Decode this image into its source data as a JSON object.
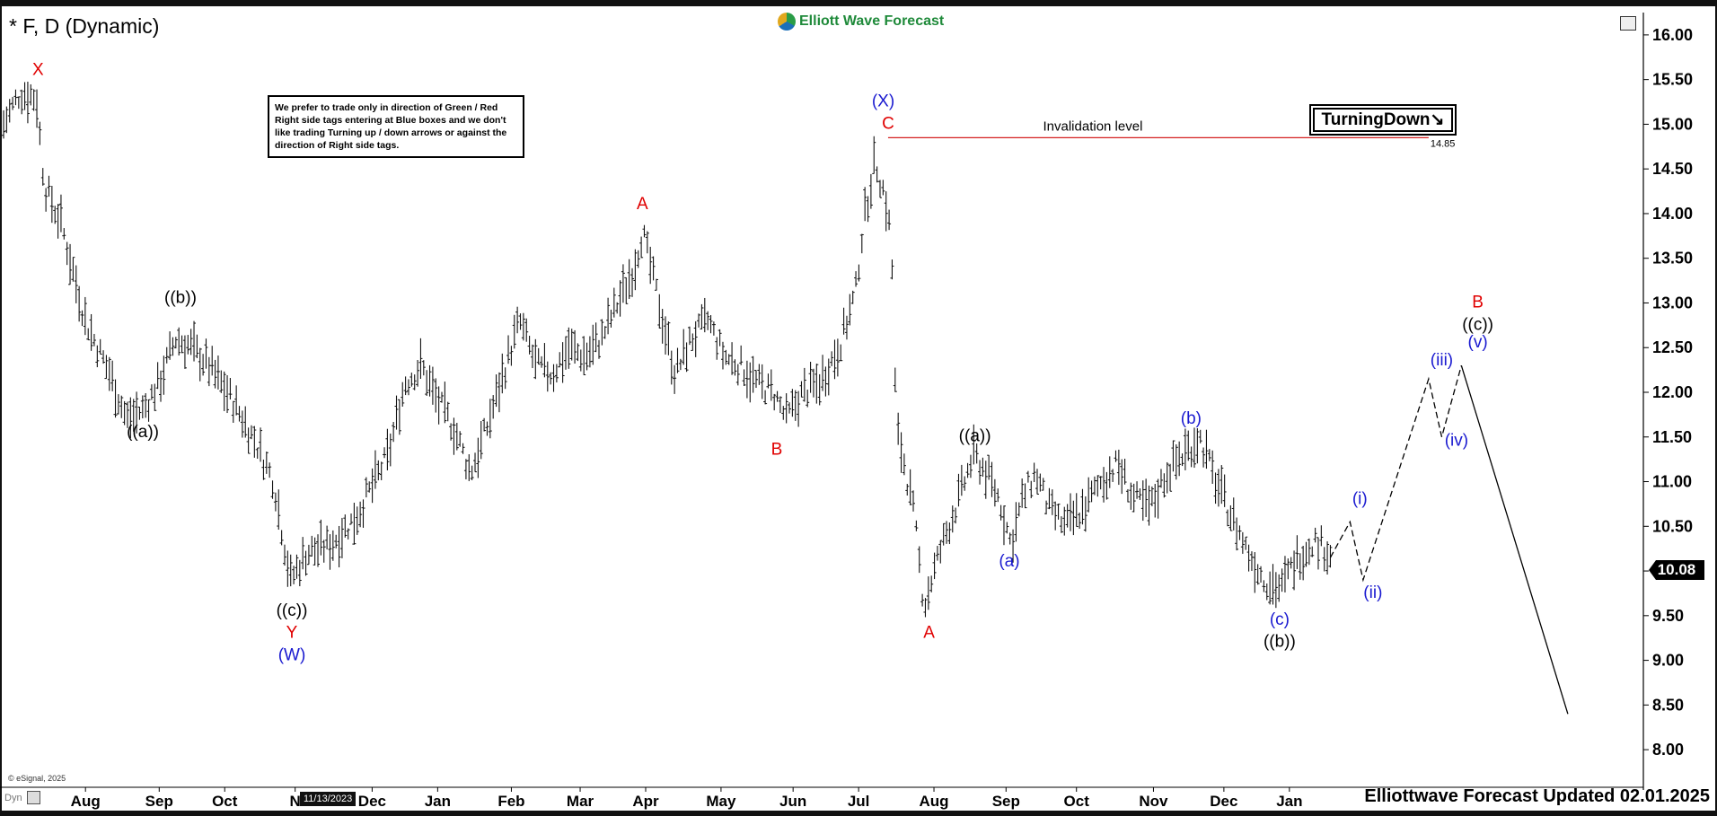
{
  "header": {
    "symbol": "* F, D (Dynamic)",
    "brand": "Elliott Wave Forecast"
  },
  "note": "We prefer to trade only in direction of Green / Red Right side tags entering at Blue boxes and we don't like trading Turning up / down arrows or against the direction of Right side tags.",
  "tag": {
    "label": "TurningDown",
    "arrow": "↘"
  },
  "invalidation": {
    "label": "Invalidation level",
    "value": "14.85"
  },
  "last_price": "10.08",
  "footer": "Elliottwave Forecast Updated 02.01.2025",
  "copyright": "© eSignal, 2025",
  "cursor_date": "11/13/2023",
  "dyn_label": "Dyn",
  "colors": {
    "red": "#e00000",
    "blue": "#1a1ad0",
    "black": "#000000",
    "invalidation_line": "#d42020"
  },
  "chart_data": {
    "type": "line",
    "subtype": "ohlc-bars with elliott wave labels",
    "ylim": [
      7.75,
      16.25
    ],
    "y_ticks": [
      "16.00",
      "15.50",
      "15.00",
      "14.50",
      "14.00",
      "13.50",
      "13.00",
      "12.50",
      "12.00",
      "11.50",
      "11.00",
      "10.50",
      "10.00",
      "9.50",
      "9.00",
      "8.50",
      "8.00"
    ],
    "x_ticks": [
      {
        "label": "Aug",
        "t": 0.05
      },
      {
        "label": "Sep",
        "t": 0.095
      },
      {
        "label": "Oct",
        "t": 0.135
      },
      {
        "label": "N",
        "t": 0.178
      },
      {
        "label": "Dec",
        "t": 0.225
      },
      {
        "label": "Jan",
        "t": 0.265
      },
      {
        "label": "Feb",
        "t": 0.31
      },
      {
        "label": "Mar",
        "t": 0.352
      },
      {
        "label": "Apr",
        "t": 0.392
      },
      {
        "label": "May",
        "t": 0.438
      },
      {
        "label": "Jun",
        "t": 0.482
      },
      {
        "label": "Jul",
        "t": 0.522
      },
      {
        "label": "Aug",
        "t": 0.568
      },
      {
        "label": "Sep",
        "t": 0.612
      },
      {
        "label": "Oct",
        "t": 0.655
      },
      {
        "label": "Nov",
        "t": 0.702
      },
      {
        "label": "Dec",
        "t": 0.745
      },
      {
        "label": "Jan",
        "t": 0.785
      }
    ],
    "price_path": [
      [
        0.0,
        15.0
      ],
      [
        0.01,
        15.35
      ],
      [
        0.02,
        15.3
      ],
      [
        0.025,
        14.3
      ],
      [
        0.035,
        13.9
      ],
      [
        0.05,
        12.8
      ],
      [
        0.065,
        12.2
      ],
      [
        0.075,
        11.7
      ],
      [
        0.085,
        11.8
      ],
      [
        0.095,
        12.1
      ],
      [
        0.105,
        12.6
      ],
      [
        0.115,
        12.5
      ],
      [
        0.125,
        12.3
      ],
      [
        0.14,
        11.9
      ],
      [
        0.155,
        11.4
      ],
      [
        0.165,
        11.0
      ],
      [
        0.175,
        9.9
      ],
      [
        0.185,
        10.2
      ],
      [
        0.2,
        10.3
      ],
      [
        0.215,
        10.6
      ],
      [
        0.235,
        11.3
      ],
      [
        0.245,
        12.1
      ],
      [
        0.255,
        12.3
      ],
      [
        0.265,
        11.9
      ],
      [
        0.275,
        11.6
      ],
      [
        0.285,
        11.1
      ],
      [
        0.295,
        11.6
      ],
      [
        0.305,
        12.2
      ],
      [
        0.315,
        12.8
      ],
      [
        0.325,
        12.3
      ],
      [
        0.335,
        12.2
      ],
      [
        0.345,
        12.5
      ],
      [
        0.355,
        12.4
      ],
      [
        0.365,
        12.6
      ],
      [
        0.375,
        13.0
      ],
      [
        0.385,
        13.4
      ],
      [
        0.39,
        13.8
      ],
      [
        0.4,
        13.0
      ],
      [
        0.41,
        12.2
      ],
      [
        0.42,
        12.6
      ],
      [
        0.43,
        12.8
      ],
      [
        0.44,
        12.4
      ],
      [
        0.45,
        12.3
      ],
      [
        0.46,
        12.1
      ],
      [
        0.47,
        12.0
      ],
      [
        0.478,
        11.7
      ],
      [
        0.488,
        12.0
      ],
      [
        0.498,
        12.1
      ],
      [
        0.51,
        12.5
      ],
      [
        0.52,
        13.1
      ],
      [
        0.525,
        13.9
      ],
      [
        0.532,
        14.6
      ],
      [
        0.538,
        14.2
      ],
      [
        0.542,
        13.7
      ],
      [
        0.545,
        11.6
      ],
      [
        0.55,
        11.2
      ],
      [
        0.556,
        10.6
      ],
      [
        0.562,
        9.6
      ],
      [
        0.568,
        10.0
      ],
      [
        0.575,
        10.4
      ],
      [
        0.585,
        10.9
      ],
      [
        0.592,
        11.3
      ],
      [
        0.6,
        11.1
      ],
      [
        0.608,
        10.8
      ],
      [
        0.615,
        10.3
      ],
      [
        0.622,
        10.8
      ],
      [
        0.63,
        11.1
      ],
      [
        0.638,
        10.7
      ],
      [
        0.648,
        10.5
      ],
      [
        0.66,
        10.7
      ],
      [
        0.67,
        11.0
      ],
      [
        0.68,
        11.2
      ],
      [
        0.69,
        10.8
      ],
      [
        0.7,
        10.7
      ],
      [
        0.71,
        11.1
      ],
      [
        0.72,
        11.3
      ],
      [
        0.73,
        11.5
      ],
      [
        0.74,
        11.0
      ],
      [
        0.75,
        10.6
      ],
      [
        0.76,
        10.2
      ],
      [
        0.77,
        9.9
      ],
      [
        0.78,
        9.8
      ],
      [
        0.788,
        10.1
      ],
      [
        0.8,
        10.35
      ],
      [
        0.81,
        10.2
      ]
    ],
    "projection": [
      [
        0.81,
        10.15
      ],
      [
        0.822,
        10.55
      ],
      [
        0.83,
        9.9
      ],
      [
        0.87,
        12.15
      ],
      [
        0.878,
        11.5
      ],
      [
        0.89,
        12.3
      ]
    ],
    "projection_down": [
      [
        0.89,
        12.3
      ],
      [
        0.955,
        8.4
      ]
    ],
    "labels": [
      {
        "text": "X",
        "t": 0.021,
        "y": 15.55,
        "color": "red"
      },
      {
        "text": "((b))",
        "t": 0.108,
        "y": 13.0,
        "color": "black"
      },
      {
        "text": "((a))",
        "t": 0.085,
        "y": 11.5,
        "color": "black"
      },
      {
        "text": "((c))",
        "t": 0.176,
        "y": 9.5,
        "color": "black"
      },
      {
        "text": "Y",
        "t": 0.176,
        "y": 9.25,
        "color": "red"
      },
      {
        "text": "(W)",
        "t": 0.176,
        "y": 9.0,
        "color": "blue"
      },
      {
        "text": "A",
        "t": 0.39,
        "y": 14.05,
        "color": "red"
      },
      {
        "text": "B",
        "t": 0.472,
        "y": 11.3,
        "color": "red"
      },
      {
        "text": "(X)",
        "t": 0.537,
        "y": 15.2,
        "color": "blue"
      },
      {
        "text": "C",
        "t": 0.54,
        "y": 14.95,
        "color": "red"
      },
      {
        "text": "A",
        "t": 0.565,
        "y": 9.25,
        "color": "red"
      },
      {
        "text": "((a))",
        "t": 0.593,
        "y": 11.45,
        "color": "black"
      },
      {
        "text": "(a)",
        "t": 0.614,
        "y": 10.05,
        "color": "blue"
      },
      {
        "text": "(b)",
        "t": 0.725,
        "y": 11.65,
        "color": "blue"
      },
      {
        "text": "(c)",
        "t": 0.779,
        "y": 9.4,
        "color": "blue"
      },
      {
        "text": "((b))",
        "t": 0.779,
        "y": 9.15,
        "color": "black"
      },
      {
        "text": "(i)",
        "t": 0.828,
        "y": 10.75,
        "color": "blue"
      },
      {
        "text": "(ii)",
        "t": 0.836,
        "y": 9.7,
        "color": "blue"
      },
      {
        "text": "(iii)",
        "t": 0.878,
        "y": 12.3,
        "color": "blue"
      },
      {
        "text": "(iv)",
        "t": 0.887,
        "y": 11.4,
        "color": "blue"
      },
      {
        "text": "(v)",
        "t": 0.9,
        "y": 12.5,
        "color": "blue"
      },
      {
        "text": "((c))",
        "t": 0.9,
        "y": 12.7,
        "color": "black"
      },
      {
        "text": "B",
        "t": 0.9,
        "y": 12.95,
        "color": "red"
      }
    ],
    "invalidation_line": {
      "y": 14.85,
      "t_from": 0.54,
      "t_to": 0.87
    },
    "grid": false
  }
}
